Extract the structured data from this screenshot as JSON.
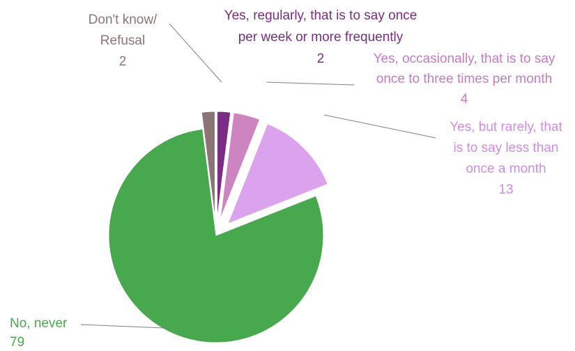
{
  "chart_data": {
    "type": "pie",
    "title": "",
    "exploded": true,
    "slices": [
      {
        "label_lines": [
          "Yes, regularly, that is to say once",
          "per week or more frequently"
        ],
        "value": 2,
        "value_text": "2",
        "color": "#7B2C83",
        "label_color": "#7B2C83"
      },
      {
        "label_lines": [
          "Yes, occasionally, that is to say",
          "once to three times per month"
        ],
        "value": 4,
        "value_text": "4",
        "color": "#CC85C1",
        "label_color": "#C77BC4"
      },
      {
        "label_lines": [
          "Yes, but rarely, that",
          "is to say less than",
          "once a month"
        ],
        "value": 13,
        "value_text": "13",
        "color": "#DBA2EE",
        "label_color": "#D08BE6"
      },
      {
        "label_lines": [
          "No, never"
        ],
        "value": 79,
        "value_text": "79",
        "color": "#48A84E",
        "label_color": "#48A84E"
      },
      {
        "label_lines": [
          "Don't know/",
          "Refusal"
        ],
        "value": 2,
        "value_text": "2",
        "color": "#8C7378",
        "label_color": "#8C7378"
      }
    ]
  }
}
